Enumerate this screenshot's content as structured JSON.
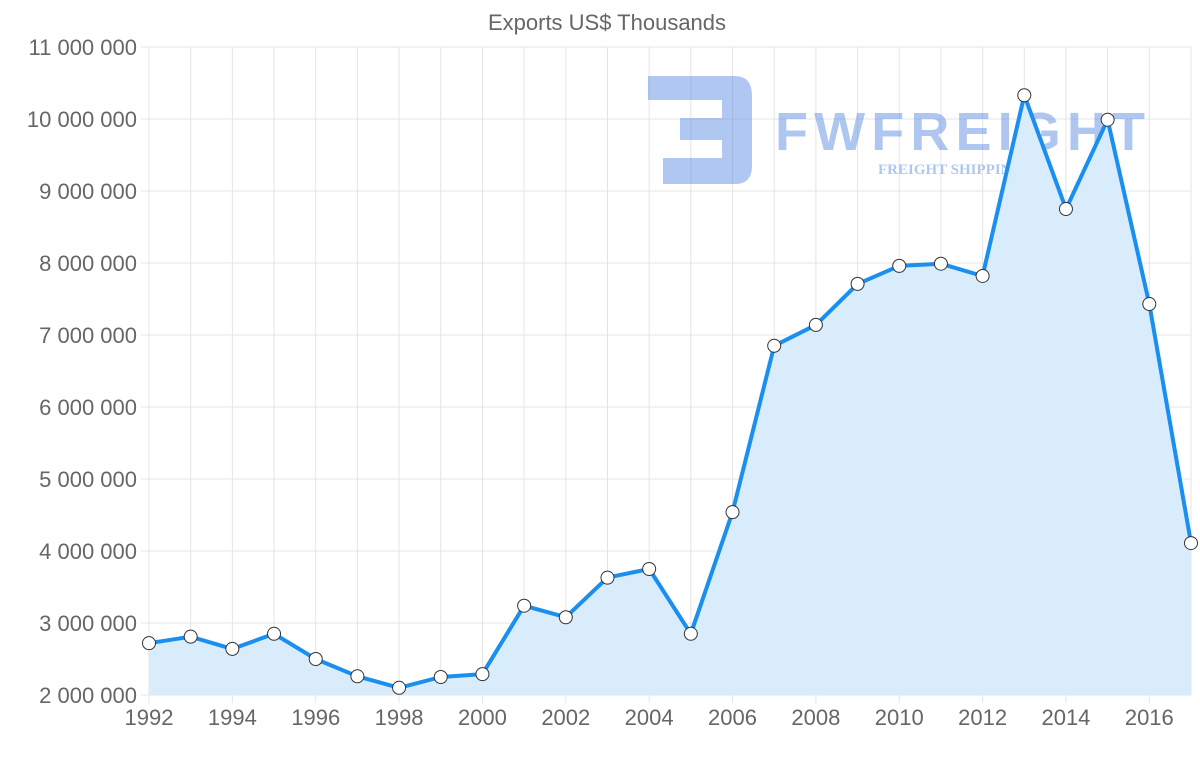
{
  "chart_data": {
    "type": "area",
    "title": "Exports US$ Thousands",
    "xlabel": "",
    "ylabel": "",
    "x": [
      1992,
      1993,
      1994,
      1995,
      1996,
      1997,
      1998,
      1999,
      2000,
      2001,
      2002,
      2003,
      2004,
      2005,
      2006,
      2007,
      2008,
      2009,
      2010,
      2011,
      2012,
      2013,
      2014,
      2015,
      2016,
      2017
    ],
    "series": [
      {
        "name": "Exports US$ Thousands",
        "values": [
          2720000,
          2810000,
          2640000,
          2850000,
          2500000,
          2260000,
          2100000,
          2250000,
          2290000,
          3240000,
          3080000,
          3630000,
          3750000,
          2850000,
          4540000,
          6850000,
          7140000,
          7710000,
          7960000,
          7990000,
          7820000,
          10330000,
          8750000,
          9990000,
          7430000,
          4110000
        ]
      }
    ],
    "xlim": [
      1992,
      2017
    ],
    "ylim": [
      2000000,
      11000000
    ],
    "x_ticks": [
      "1992",
      "1994",
      "1996",
      "1998",
      "2000",
      "2002",
      "2004",
      "2006",
      "2008",
      "2010",
      "2012",
      "2014",
      "2016"
    ],
    "y_ticks": [
      "2 000 000",
      "3 000 000",
      "4 000 000",
      "5 000 000",
      "6 000 000",
      "7 000 000",
      "8 000 000",
      "9 000 000",
      "10 000 000",
      "11 000 000"
    ],
    "grid": true,
    "legend": "none",
    "colors": {
      "line": "#1a8ff0",
      "fill": "#d9ecfc",
      "grid": "#e4e4e4"
    }
  },
  "watermark": {
    "brand": "FWFREIGHT",
    "tagline": "FREIGHT SHIPPING"
  }
}
